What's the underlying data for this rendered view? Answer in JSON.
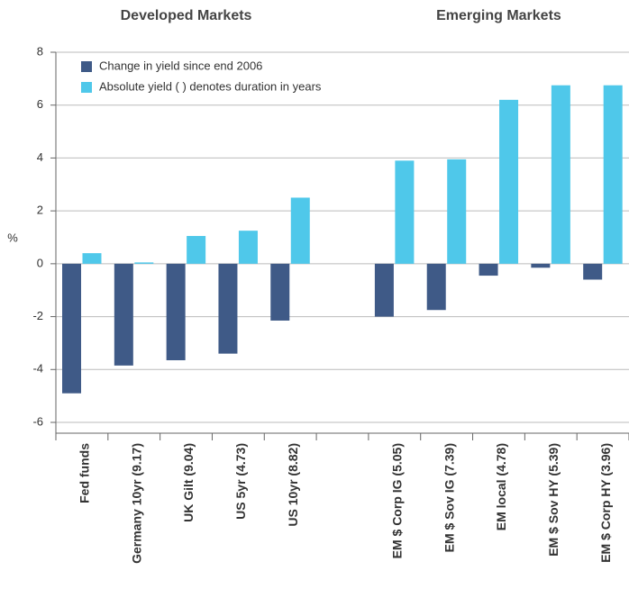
{
  "chart_data": {
    "type": "bar",
    "group_labels": [
      "Developed Markets",
      "Emerging Markets"
    ],
    "ylabel": "%",
    "categories": [
      "Fed funds",
      "Germany 10yr (9.17)",
      "UK Gilt (9.04)",
      "US 5yr (4.73)",
      "US 10yr (8.82)",
      null,
      "EM $ Corp IG (5.05)",
      "EM $ Sov IG (7.39)",
      "EM local (4.78)",
      "EM $ Sov HY (5.39)",
      "EM $ Corp HY (3.96)"
    ],
    "series": [
      {
        "name": "Change in yield since end 2006",
        "color": "#3f5a87",
        "values": [
          -4.9,
          -3.85,
          -3.65,
          -3.4,
          -2.15,
          null,
          -2.0,
          -1.75,
          -0.45,
          -0.15,
          -0.6
        ]
      },
      {
        "name": "Absolute yield ( ) denotes duration in years",
        "color": "#4fc8ea",
        "values": [
          0.4,
          0.05,
          1.05,
          1.25,
          2.5,
          null,
          3.9,
          3.95,
          6.2,
          6.75,
          6.75
        ]
      }
    ],
    "ylim": [
      -6,
      8
    ],
    "yticks": [
      -6,
      -4,
      -2,
      0,
      2,
      4,
      6,
      8
    ],
    "grid": true,
    "legend": "upper left"
  }
}
